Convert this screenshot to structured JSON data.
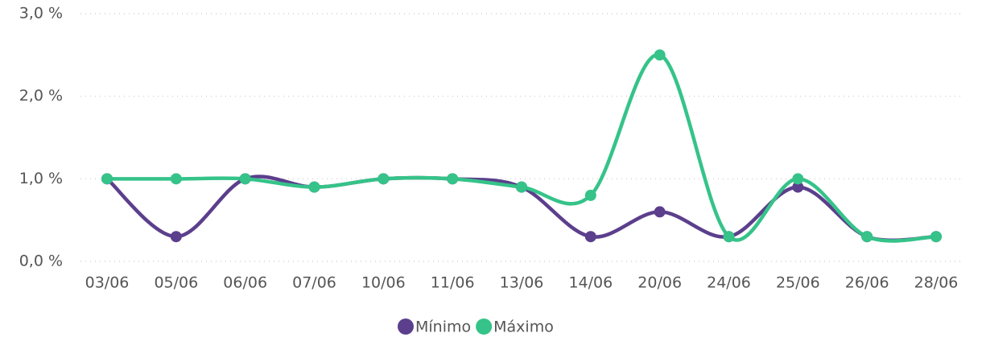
{
  "chart_data": {
    "type": "line",
    "categories": [
      "03/06",
      "05/06",
      "06/06",
      "07/06",
      "10/06",
      "11/06",
      "13/06",
      "14/06",
      "20/06",
      "24/06",
      "25/06",
      "26/06",
      "28/06"
    ],
    "series": [
      {
        "name": "Mínimo",
        "color": "#5b3f8c",
        "values": [
          1.0,
          0.3,
          1.0,
          0.9,
          1.0,
          1.0,
          0.9,
          0.3,
          0.6,
          0.3,
          0.9,
          0.3,
          0.3
        ]
      },
      {
        "name": "Máximo",
        "color": "#35c389",
        "values": [
          1.0,
          1.0,
          1.0,
          0.9,
          1.0,
          1.0,
          0.9,
          0.8,
          2.5,
          0.3,
          1.0,
          0.3,
          0.3
        ]
      }
    ],
    "ylim": [
      0,
      3
    ],
    "yticks": [
      {
        "value": 0,
        "label": "0,0 %"
      },
      {
        "value": 1,
        "label": "1,0 %"
      },
      {
        "value": 2,
        "label": "2,0 %"
      },
      {
        "value": 3,
        "label": "3,0 %"
      }
    ],
    "grid": true,
    "legend": "bottom"
  }
}
